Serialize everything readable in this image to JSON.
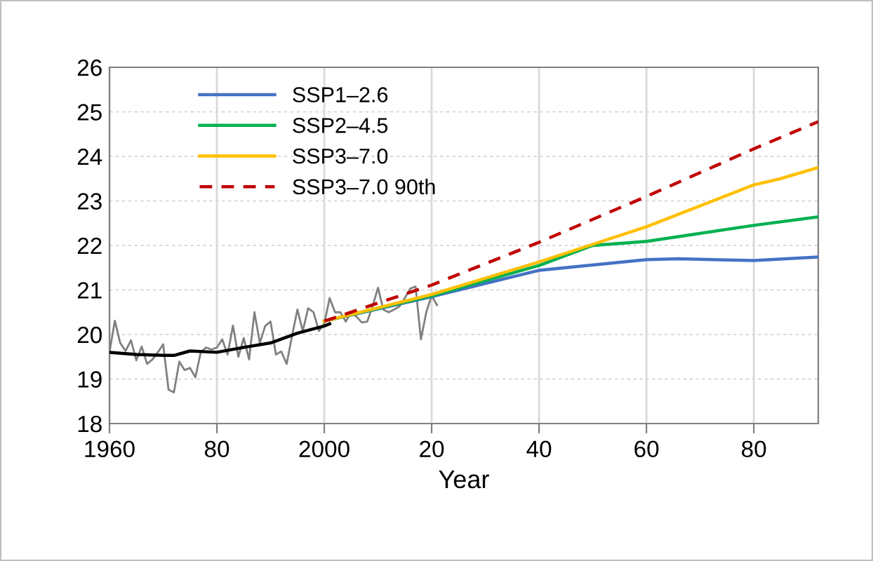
{
  "chart_data": {
    "type": "line",
    "xlabel": "Year",
    "xlim": [
      1960,
      2092
    ],
    "ylim": [
      18,
      26
    ],
    "xticks": [
      1960,
      {
        "value": 1980,
        "label": "80"
      },
      2000,
      {
        "value": 2020,
        "label": "20"
      },
      {
        "value": 2040,
        "label": "40"
      },
      {
        "value": 2060,
        "label": "60"
      },
      {
        "value": 2080,
        "label": "80"
      }
    ],
    "yticks": [
      18,
      19,
      20,
      21,
      22,
      23,
      24,
      25,
      26
    ],
    "grid": true,
    "legend": "top left",
    "marker": "none",
    "series": [
      {
        "color": "#808080",
        "line_style": "solid",
        "x": [
          1960,
          1961,
          1962,
          1963,
          1964,
          1965,
          1966,
          1967,
          1968,
          1969,
          1970,
          1971,
          1972,
          1973,
          1974,
          1975,
          1976,
          1977,
          1978,
          1979,
          1980,
          1981,
          1982,
          1983,
          1984,
          1985,
          1986,
          1987,
          1988,
          1989,
          1990,
          1991,
          1992,
          1993,
          1994,
          1995,
          1996,
          1997,
          1998,
          1999,
          2000,
          2001,
          2002,
          2003,
          2004,
          2005,
          2006,
          2007,
          2008,
          2009,
          2010,
          2011,
          2012,
          2013,
          2014,
          2015,
          2016,
          2017,
          2018,
          2019,
          2020,
          2021
        ],
        "values": [
          19.6,
          20.31,
          19.81,
          19.63,
          19.87,
          19.42,
          19.73,
          19.34,
          19.44,
          19.6,
          19.78,
          18.76,
          18.7,
          19.39,
          19.2,
          19.25,
          19.04,
          19.6,
          19.71,
          19.66,
          19.71,
          19.89,
          19.55,
          20.2,
          19.5,
          19.92,
          19.44,
          20.5,
          19.81,
          20.19,
          20.29,
          19.55,
          19.62,
          19.34,
          19.97,
          20.56,
          20.08,
          20.59,
          20.5,
          20.08,
          20.24,
          20.82,
          20.5,
          20.5,
          20.29,
          20.5,
          20.4,
          20.27,
          20.29,
          20.63,
          21.05,
          20.56,
          20.5,
          20.56,
          20.63,
          20.82,
          21.03,
          21.08,
          19.89,
          20.5,
          20.87,
          20.66
        ]
      },
      {
        "color": "#000000",
        "line_style": "solid",
        "x": [
          1960,
          1965,
          1970,
          1972,
          1975,
          1980,
          1985,
          1990,
          1995,
          2000,
          2001
        ],
        "values": [
          19.6,
          19.55,
          19.53,
          19.53,
          19.63,
          19.6,
          19.71,
          19.81,
          20.03,
          20.19,
          20.24
        ]
      },
      {
        "name": "SSP1–2.6",
        "color": "#4472c4",
        "line_style": "solid",
        "x": [
          2000,
          2020,
          2040,
          2060,
          2066,
          2080,
          2092
        ],
        "values": [
          20.3,
          20.85,
          21.44,
          21.68,
          21.7,
          21.66,
          21.74
        ]
      },
      {
        "name": "SSP2–4.5",
        "color": "#00b050",
        "line_style": "solid",
        "x": [
          2000,
          2020,
          2040,
          2050,
          2060,
          2080,
          2092
        ],
        "values": [
          20.3,
          20.87,
          21.55,
          22.0,
          22.09,
          22.45,
          22.64
        ]
      },
      {
        "name": "SSP3–7.0",
        "color": "#ffc000",
        "line_style": "solid",
        "x": [
          2000,
          2020,
          2040,
          2060,
          2080,
          2085,
          2092
        ],
        "values": [
          20.3,
          20.9,
          21.63,
          22.42,
          23.36,
          23.5,
          23.75
        ]
      },
      {
        "name": "SSP3–7.0 90th",
        "color": "#c00000",
        "line_style": "dashed",
        "x": [
          2000,
          2020,
          2040,
          2060,
          2080,
          2092
        ],
        "values": [
          20.3,
          21.11,
          22.07,
          23.1,
          24.17,
          24.78
        ]
      }
    ]
  }
}
